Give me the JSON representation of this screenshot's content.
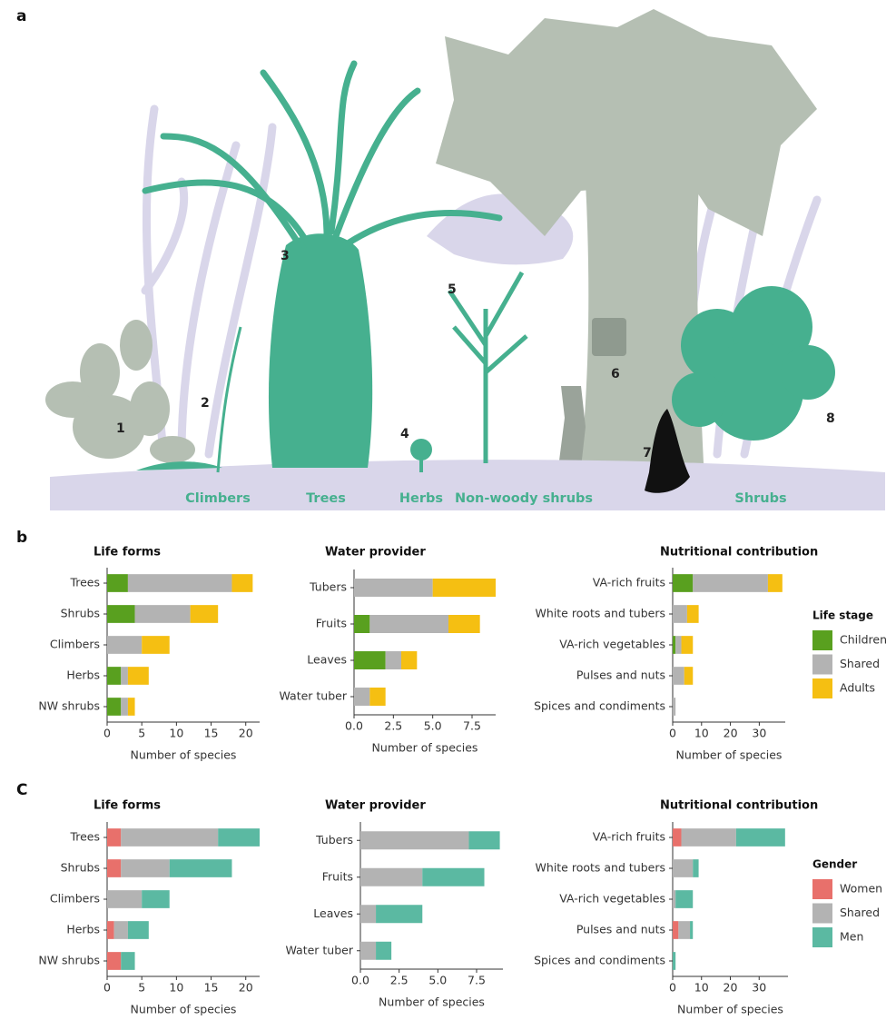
{
  "panels": [
    "a",
    "b",
    "C"
  ],
  "illustration": {
    "numbers": [
      "1",
      "2",
      "3",
      "4",
      "5",
      "6",
      "7",
      "8"
    ],
    "groups": [
      "Climbers",
      "Trees",
      "Herbs",
      "Non-woody shrubs",
      "Shrubs"
    ]
  },
  "chart_data": [
    {
      "type": "bar",
      "orientation": "horizontal",
      "stacked": true,
      "title": "Life forms",
      "xlabel": "Number of species",
      "categories": [
        "Trees",
        "Shrubs",
        "Climbers",
        "Herbs",
        "NW shrubs"
      ],
      "series": [
        {
          "name": "Children",
          "color": "#59a01f",
          "values": [
            3,
            4,
            0,
            2,
            2
          ]
        },
        {
          "name": "Shared",
          "color": "#b3b3b3",
          "values": [
            15,
            8,
            5,
            1,
            1
          ]
        },
        {
          "name": "Adults",
          "color": "#f5bf12",
          "values": [
            3,
            4,
            4,
            3,
            1
          ]
        }
      ],
      "xlim": [
        0,
        22
      ],
      "xticks": [
        0,
        5,
        10,
        15,
        20
      ]
    },
    {
      "type": "bar",
      "orientation": "horizontal",
      "stacked": true,
      "title": "Water provider",
      "xlabel": "Number of species",
      "categories": [
        "Tubers",
        "Fruits",
        "Leaves",
        "Water tuber"
      ],
      "series": [
        {
          "name": "Children",
          "color": "#59a01f",
          "values": [
            0,
            1,
            2,
            0
          ]
        },
        {
          "name": "Shared",
          "color": "#b3b3b3",
          "values": [
            5,
            5,
            1,
            1
          ]
        },
        {
          "name": "Adults",
          "color": "#f5bf12",
          "values": [
            4,
            2,
            1,
            1
          ]
        }
      ],
      "xlim": [
        0,
        9
      ],
      "xticks": [
        {
          "value": 0,
          "label": "0.0"
        },
        2.5,
        {
          "value": 5,
          "label": "5.0"
        },
        7.5
      ]
    },
    {
      "type": "bar",
      "orientation": "horizontal",
      "stacked": true,
      "title": "Nutritional contribution",
      "xlabel": "Number of species",
      "categories": [
        "VA-rich fruits",
        "White roots and tubers",
        "VA-rich vegetables",
        "Pulses and nuts",
        "Spices and condiments"
      ],
      "series": [
        {
          "name": "Children",
          "color": "#59a01f",
          "values": [
            7,
            0,
            1,
            0,
            0
          ]
        },
        {
          "name": "Shared",
          "color": "#b3b3b3",
          "values": [
            26,
            5,
            2,
            4,
            1
          ]
        },
        {
          "name": "Adults",
          "color": "#f5bf12",
          "values": [
            5,
            4,
            4,
            3,
            0
          ]
        }
      ],
      "xlim": [
        0,
        39
      ],
      "xticks": [
        0,
        10,
        20,
        30
      ],
      "legend_title": "Life stage"
    },
    {
      "type": "bar",
      "orientation": "horizontal",
      "stacked": true,
      "title": "Life forms",
      "xlabel": "Number of species",
      "categories": [
        "Trees",
        "Shrubs",
        "Climbers",
        "Herbs",
        "NW shrubs"
      ],
      "series": [
        {
          "name": "Women",
          "color": "#e8706b",
          "values": [
            2,
            2,
            0,
            1,
            2
          ]
        },
        {
          "name": "Shared",
          "color": "#b3b3b3",
          "values": [
            14,
            7,
            5,
            2,
            0
          ]
        },
        {
          "name": "Men",
          "color": "#5bb9a2",
          "values": [
            6,
            9,
            4,
            3,
            2
          ]
        }
      ],
      "xlim": [
        0,
        22
      ],
      "xticks": [
        0,
        5,
        10,
        15,
        20
      ]
    },
    {
      "type": "bar",
      "orientation": "horizontal",
      "stacked": true,
      "title": "Water provider",
      "xlabel": "Number of species",
      "categories": [
        "Tubers",
        "Fruits",
        "Leaves",
        "Water tuber"
      ],
      "series": [
        {
          "name": "Women",
          "color": "#e8706b",
          "values": [
            0,
            0,
            0,
            0
          ]
        },
        {
          "name": "Shared",
          "color": "#b3b3b3",
          "values": [
            7,
            4,
            1,
            1
          ]
        },
        {
          "name": "Men",
          "color": "#5bb9a2",
          "values": [
            2,
            4,
            3,
            1
          ]
        }
      ],
      "xlim": [
        0,
        9.2
      ],
      "xticks": [
        {
          "value": 0,
          "label": "0.0"
        },
        2.5,
        {
          "value": 5,
          "label": "5.0"
        },
        7.5
      ]
    },
    {
      "type": "bar",
      "orientation": "horizontal",
      "stacked": true,
      "title": "Nutritional contribution",
      "xlabel": "Number of species",
      "categories": [
        "VA-rich fruits",
        "White roots and tubers",
        "VA-rich vegetables",
        "Pulses and nuts",
        "Spices and condiments"
      ],
      "series": [
        {
          "name": "Women",
          "color": "#e8706b",
          "values": [
            3,
            0,
            0,
            2,
            0
          ]
        },
        {
          "name": "Shared",
          "color": "#b3b3b3",
          "values": [
            19,
            7,
            1,
            4,
            0
          ]
        },
        {
          "name": "Men",
          "color": "#5bb9a2",
          "values": [
            17,
            2,
            6,
            1,
            1
          ]
        }
      ],
      "xlim": [
        0,
        40
      ],
      "xticks": [
        0,
        10,
        20,
        30
      ],
      "legend_title": "Gender"
    }
  ]
}
